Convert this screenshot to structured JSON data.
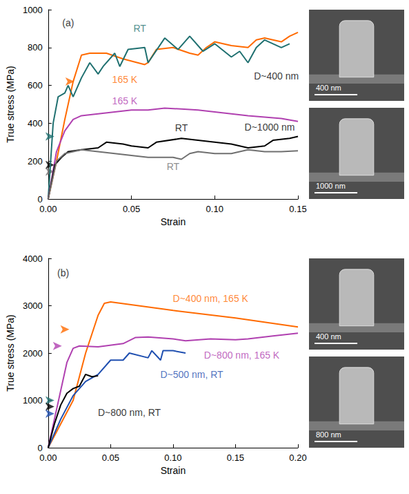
{
  "chart_data": [
    {
      "type": "line",
      "xlabel": "Strain",
      "ylabel": "True stress (MPa)",
      "xlim": [
        0,
        0.15
      ],
      "ylim": [
        0,
        1000
      ],
      "xticks": [
        {
          "value": 0,
          "label": "0.00"
        },
        {
          "value": 0.05,
          "label": "0.05"
        },
        {
          "value": 0.1,
          "label": "0.10"
        },
        {
          "value": 0.15,
          "label": "0.15"
        }
      ],
      "yticks": [
        0,
        200,
        400,
        600,
        800,
        1000
      ],
      "grid": false,
      "series": [
        {
          "color": "#ff6a00",
          "x": [
            0,
            0.005,
            0.01,
            0.015,
            0.02,
            0.025,
            0.035,
            0.045,
            0.058,
            0.06,
            0.065,
            0.075,
            0.085,
            0.09,
            0.095,
            0.1,
            0.11,
            0.12,
            0.125,
            0.13,
            0.14,
            0.145,
            0.15
          ],
          "values": [
            0,
            200,
            420,
            620,
            760,
            770,
            770,
            740,
            710,
            720,
            790,
            800,
            770,
            760,
            800,
            830,
            810,
            800,
            840,
            850,
            830,
            860,
            880
          ]
        },
        {
          "color": "#1f7070",
          "x": [
            0,
            0.003,
            0.006,
            0.01,
            0.012,
            0.015,
            0.02,
            0.025,
            0.03,
            0.033,
            0.04,
            0.043,
            0.048,
            0.058,
            0.06,
            0.07,
            0.078,
            0.085,
            0.093,
            0.1,
            0.11,
            0.115,
            0.12,
            0.125,
            0.13,
            0.14,
            0.145
          ],
          "values": [
            0,
            400,
            540,
            560,
            600,
            540,
            640,
            720,
            660,
            700,
            770,
            700,
            790,
            800,
            720,
            850,
            790,
            860,
            780,
            820,
            750,
            780,
            720,
            800,
            840,
            800,
            820
          ]
        },
        {
          "color": "#b040b0",
          "x": [
            0,
            0.005,
            0.01,
            0.015,
            0.02,
            0.03,
            0.04,
            0.05,
            0.06,
            0.07,
            0.08,
            0.09,
            0.1,
            0.12,
            0.14,
            0.15
          ],
          "values": [
            0,
            250,
            360,
            420,
            440,
            450,
            460,
            470,
            470,
            480,
            475,
            470,
            460,
            440,
            425,
            410
          ]
        },
        {
          "color": "#000000",
          "x": [
            0,
            0.004,
            0.008,
            0.012,
            0.02,
            0.03,
            0.035,
            0.045,
            0.05,
            0.06,
            0.065,
            0.08,
            0.09,
            0.1,
            0.11,
            0.12,
            0.13,
            0.135,
            0.145,
            0.15
          ],
          "values": [
            0,
            180,
            220,
            250,
            260,
            270,
            300,
            290,
            280,
            270,
            300,
            320,
            310,
            300,
            290,
            270,
            280,
            310,
            320,
            330
          ]
        },
        {
          "color": "#707070",
          "x": [
            0,
            0.005,
            0.01,
            0.02,
            0.03,
            0.04,
            0.05,
            0.06,
            0.07,
            0.075,
            0.08,
            0.085,
            0.09,
            0.1,
            0.11,
            0.12,
            0.13,
            0.14,
            0.15
          ],
          "values": [
            0,
            200,
            240,
            260,
            250,
            240,
            230,
            220,
            220,
            220,
            210,
            240,
            250,
            240,
            240,
            260,
            250,
            250,
            255
          ]
        }
      ],
      "annotations": [
        {
          "text": "(a)",
          "x": 0.012,
          "y": 930,
          "color": "#000000"
        },
        {
          "text": "RT",
          "x": 0.055,
          "y": 900,
          "color": "#1f7070"
        },
        {
          "text": "165 K",
          "x": 0.046,
          "y": 630,
          "color": "#ff6a00"
        },
        {
          "text": "165 K",
          "x": 0.046,
          "y": 520,
          "color": "#b040b0"
        },
        {
          "text": "RT",
          "x": 0.08,
          "y": 375,
          "color": "#000000"
        },
        {
          "text": "RT",
          "x": 0.075,
          "y": 170,
          "color": "#707070"
        },
        {
          "text": "D~400 nm",
          "x": 0.137,
          "y": 650,
          "color": "#000000"
        },
        {
          "text": "D~1000 nm",
          "x": 0.133,
          "y": 380,
          "color": "#000000"
        }
      ],
      "arrows": [
        {
          "x": 0.012,
          "y": 620,
          "color": "#ff6a00"
        },
        {
          "x": 0,
          "y": 330,
          "color": "#1f7070"
        },
        {
          "x": 0,
          "y": 180,
          "color": "#000000"
        },
        {
          "x": 0,
          "y": 145,
          "color": "#707070"
        }
      ],
      "images": [
        {
          "scale_bar": "400 nm"
        },
        {
          "scale_bar": "1000 nm"
        }
      ]
    },
    {
      "type": "line",
      "xlabel": "Strain",
      "ylabel": "True stress (MPa)",
      "xlim": [
        0,
        0.2
      ],
      "ylim": [
        0,
        4000
      ],
      "xticks": [
        {
          "value": 0,
          "label": "0.00"
        },
        {
          "value": 0.05,
          "label": "0.05"
        },
        {
          "value": 0.1,
          "label": "0.10"
        },
        {
          "value": 0.15,
          "label": "0.15"
        },
        {
          "value": 0.2,
          "label": "0.20"
        }
      ],
      "yticks": [
        0,
        1000,
        2000,
        3000,
        4000
      ],
      "grid": false,
      "series": [
        {
          "color": "#ff6a00",
          "x": [
            0,
            0.01,
            0.02,
            0.03,
            0.04,
            0.045,
            0.05,
            0.1,
            0.15,
            0.2
          ],
          "values": [
            0,
            500,
            1000,
            2000,
            2800,
            3050,
            3080,
            2900,
            2740,
            2550
          ]
        },
        {
          "color": "#b040b0",
          "x": [
            0,
            0.005,
            0.01,
            0.015,
            0.02,
            0.025,
            0.04,
            0.06,
            0.07,
            0.08,
            0.1,
            0.11,
            0.13,
            0.15,
            0.16,
            0.18,
            0.2
          ],
          "values": [
            0,
            600,
            1200,
            1800,
            2100,
            2150,
            2130,
            2200,
            2330,
            2340,
            2300,
            2260,
            2300,
            2280,
            2300,
            2360,
            2420
          ]
        },
        {
          "color": "#1f4fb0",
          "x": [
            0,
            0.01,
            0.02,
            0.03,
            0.04,
            0.05,
            0.06,
            0.065,
            0.08,
            0.083,
            0.09,
            0.092,
            0.1,
            0.11
          ],
          "values": [
            0,
            600,
            1100,
            1400,
            1550,
            1850,
            1850,
            2000,
            1900,
            2050,
            1850,
            2050,
            2050,
            2000
          ]
        },
        {
          "color": "#000000",
          "x": [
            0,
            0.005,
            0.01,
            0.015,
            0.02,
            0.025,
            0.03,
            0.035,
            0.04
          ],
          "values": [
            0,
            500,
            900,
            1150,
            1250,
            1300,
            1550,
            1500,
            1520
          ]
        }
      ],
      "annotations": [
        {
          "text": "(b)",
          "x": 0.012,
          "y": 3700,
          "color": "#000000"
        },
        {
          "text": "D~400 nm, 165 K",
          "x": 0.13,
          "y": 3150,
          "color": "#ff6a00"
        },
        {
          "text": "D~800 nm, 165 K",
          "x": 0.155,
          "y": 1950,
          "color": "#b040b0"
        },
        {
          "text": "D~500 nm, RT",
          "x": 0.115,
          "y": 1550,
          "color": "#1f4fb0"
        },
        {
          "text": "D~800 nm, RT",
          "x": 0.065,
          "y": 750,
          "color": "#000000"
        }
      ],
      "arrows": [
        {
          "x": 0.012,
          "y": 2500,
          "color": "#ff6a00"
        },
        {
          "x": 0.006,
          "y": 2150,
          "color": "#b040b0"
        },
        {
          "x": 0,
          "y": 1000,
          "color": "#1f7070"
        },
        {
          "x": 0,
          "y": 870,
          "color": "#000000"
        },
        {
          "x": 0,
          "y": 720,
          "color": "#1f4fb0"
        }
      ],
      "images": [
        {
          "scale_bar": "400 nm"
        },
        {
          "scale_bar": "800 nm"
        }
      ]
    }
  ]
}
